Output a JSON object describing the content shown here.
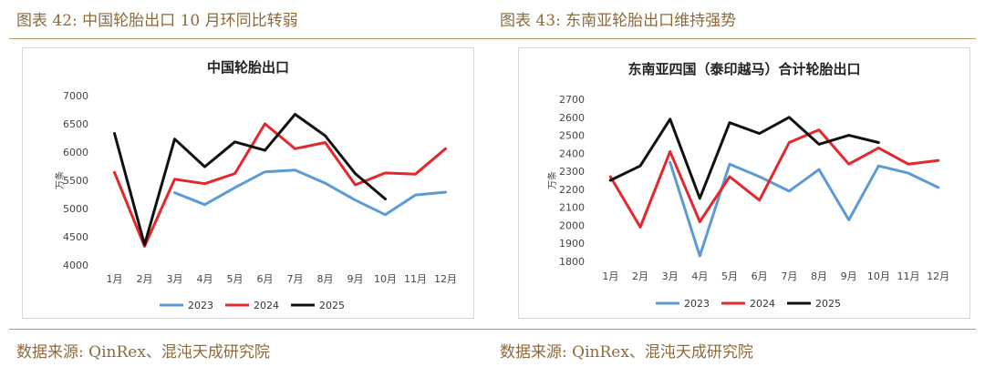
{
  "panels": [
    {
      "figure_title": "图表 42:  中国轮胎出口 10 月环同比转弱",
      "source": "数据来源:  QinRex、混沌天成研究院"
    },
    {
      "figure_title": "图表 43:  东南亚轮胎出口维持强势",
      "source": "数据来源:  QinRex、混沌天成研究院"
    }
  ],
  "chart_data": [
    {
      "type": "line",
      "title": "中国轮胎出口",
      "ylabel": "万条",
      "xlabel": "",
      "categories": [
        "1月",
        "2月",
        "3月",
        "4月",
        "5月",
        "6月",
        "7月",
        "8月",
        "9月",
        "10月",
        "11月",
        "12月"
      ],
      "ylim": [
        4000,
        7000
      ],
      "yticks": [
        4000,
        4500,
        5000,
        5500,
        6000,
        6500,
        7000
      ],
      "legend": "bottom",
      "grid": false,
      "series": [
        {
          "name": "2023",
          "color": "#5b9bd5",
          "values": [
            null,
            null,
            5280,
            5070,
            5370,
            5650,
            5680,
            5450,
            5150,
            4890,
            5240,
            5290
          ]
        },
        {
          "name": "2024",
          "color": "#e5262a",
          "values": [
            5640,
            4330,
            5520,
            5440,
            5620,
            6500,
            6060,
            6170,
            5420,
            5630,
            5610,
            6060
          ]
        },
        {
          "name": "2025",
          "color": "#111111",
          "values": [
            6330,
            4360,
            6230,
            5740,
            6180,
            6030,
            6670,
            6290,
            5620,
            5170,
            null,
            null
          ]
        }
      ]
    },
    {
      "type": "line",
      "title": "东南亚四国（泰印越马）合计轮胎出口",
      "ylabel": "万条",
      "xlabel": "",
      "categories": [
        "1月",
        "2月",
        "3月",
        "4月",
        "5月",
        "6月",
        "7月",
        "8月",
        "9月",
        "10月",
        "11月",
        "12月"
      ],
      "ylim": [
        1800,
        2700
      ],
      "yticks": [
        1800,
        1900,
        2000,
        2100,
        2200,
        2300,
        2400,
        2500,
        2600,
        2700
      ],
      "legend": "bottom",
      "grid": false,
      "series": [
        {
          "name": "2023",
          "color": "#5b9bd5",
          "values": [
            null,
            null,
            2350,
            1830,
            2340,
            2270,
            2190,
            2310,
            2030,
            2330,
            2290,
            2210
          ]
        },
        {
          "name": "2024",
          "color": "#e5262a",
          "values": [
            2270,
            1990,
            2410,
            2020,
            2270,
            2140,
            2460,
            2530,
            2340,
            2430,
            2340,
            2360
          ]
        },
        {
          "name": "2025",
          "color": "#111111",
          "values": [
            2250,
            2330,
            2590,
            2150,
            2570,
            2510,
            2600,
            2450,
            2500,
            2460,
            null,
            null
          ]
        }
      ]
    }
  ]
}
